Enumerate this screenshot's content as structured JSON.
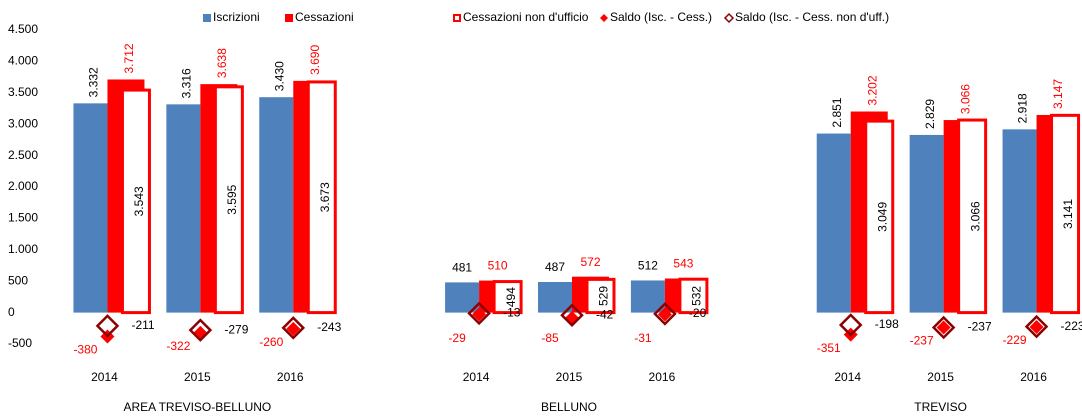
{
  "chart_data": {
    "type": "bar",
    "categories": [
      "2014",
      "2015",
      "2016",
      "2014",
      "2015",
      "2016",
      "2014",
      "2015",
      "2016"
    ],
    "groups": [
      "AREA TREVISO-BELLUNO",
      "BELLUNO",
      "TREVISO"
    ],
    "series": [
      {
        "name": "Iscrizioni",
        "type": "bar",
        "color": "#4f81bd",
        "values": [
          3332,
          3316,
          3430,
          481,
          487,
          512,
          2851,
          2829,
          2918
        ],
        "value_labels": [
          "3.332",
          "3.316",
          "3.430",
          "481",
          "487",
          "512",
          "2.851",
          "2.829",
          "2.918"
        ]
      },
      {
        "name": "Cessazioni",
        "type": "bar",
        "color": "#ff0000",
        "values": [
          3712,
          3638,
          3690,
          510,
          572,
          543,
          3202,
          3066,
          3147
        ],
        "value_labels": [
          "3.712",
          "3.638",
          "3.690",
          "510",
          "572",
          "543",
          "3.202",
          "3.066",
          "3.147"
        ]
      },
      {
        "name": "Cessazioni non d'ufficio",
        "type": "outline-bar",
        "color": "#ff0000",
        "values": [
          3543,
          3595,
          3673,
          494,
          529,
          532,
          3049,
          3066,
          3141
        ],
        "value_labels": [
          "3.543",
          "3.595",
          "3.673",
          "494",
          "529",
          "532",
          "3.049",
          "3.066",
          "3.141"
        ]
      },
      {
        "name": "Saldo (Isc. - Cess.)",
        "type": "diamond",
        "color": "#ff0000",
        "values": [
          -380,
          -322,
          -260,
          -29,
          -85,
          -31,
          -351,
          -237,
          -229
        ]
      },
      {
        "name": "Saldo (Isc. - Cess. non d'uff.)",
        "type": "hollow-diamond",
        "color": "#8b0000",
        "values": [
          -211,
          -279,
          -243,
          -13,
          -42,
          -20,
          -198,
          -237,
          -223
        ]
      }
    ],
    "ylim": [
      -500,
      4500
    ],
    "yticks": [
      -500,
      0,
      500,
      {
        "value": 1000,
        "label": "1.000"
      },
      {
        "value": 1500,
        "label": "1.500"
      },
      {
        "value": 2000,
        "label": "2.000"
      },
      {
        "value": 2500,
        "label": "2.500"
      },
      {
        "value": 3000,
        "label": "3.000"
      },
      {
        "value": 3500,
        "label": "3.500"
      },
      {
        "value": 4000,
        "label": "4.000"
      },
      {
        "value": 4500,
        "label": "4.500"
      }
    ],
    "grid": false,
    "legend": "top"
  }
}
